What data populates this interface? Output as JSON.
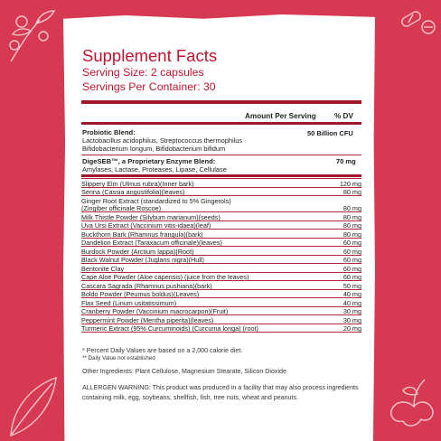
{
  "label": {
    "title": "Supplement Facts",
    "serving_size": "Serving Size: 2 capsules",
    "servings_per_container": "Servings Per Container: 30",
    "col_amount": "Amount Per Serving",
    "col_dv": "% DV",
    "probiotic": {
      "name": "Probiotic Blend:",
      "desc1": "Lactobacillus acidophilus, Streptococcus thermophilus",
      "desc2": "Bifidobacterium longum, Bifidobacterium bifidum",
      "amount": "50 Billion  CFU"
    },
    "enzyme": {
      "name": "DigeSEB™, a Proprietary Enzyme Blend:",
      "desc": "Amylases, Lactase, Proteases, Lipase, Cellulase",
      "amount": "70  mg"
    },
    "ingredients": [
      {
        "name": "Slippery Elm (Ulmus rubra)(Inner bark)",
        "amount": "120  mg"
      },
      {
        "name": "Senna (Cassia angustifolia)(leaves)",
        "amount": "80  mg"
      },
      {
        "name": "Ginger Root Extract (standardized to 5% Gingerols)",
        "name2": "(Zingiber officinale Roscoe)",
        "amount": "80  mg"
      },
      {
        "name": "Milk Thistle Powder (Silybum marianum)(seeds)",
        "amount": "80  mg"
      },
      {
        "name": "Uva Ursi Extract (Vaccinium vitis-idaea)(leaf)",
        "amount": "80  mg"
      },
      {
        "name": "Buckthorn Bark (Rhamnus frangula)(bark)",
        "amount": "80  mg"
      },
      {
        "name": "Dandelion Extract (Taraxacum officinale)(leaves)",
        "amount": "60  mg"
      },
      {
        "name": "Burdock Powder (Arctium lappa)(Root)",
        "amount": "60  mg"
      },
      {
        "name": "Black Walnut Powder (Juglans nigra)(Hull)",
        "amount": "60  mg"
      },
      {
        "name": "Bentonite Clay",
        "amount": "60  mg"
      },
      {
        "name": "Cape Aloe Powder (Aloe capensis) (juice from the leaves)",
        "amount": "60  mg"
      },
      {
        "name": "Cascara Sagrada (Rhamnus pushiana)(bark)",
        "amount": "50  mg"
      },
      {
        "name": "Boldo Powder (Peumus boldus)(Leaves)",
        "amount": "40  mg"
      },
      {
        "name": "Flax Seed (Linum usitatissimum)",
        "amount": "40  mg"
      },
      {
        "name": "Cranberry Powder (Vaccinium macrocarpon)(Fruit)",
        "amount": "30  mg"
      },
      {
        "name": "Peppermint Powder (Mentha piperita)(leaves)",
        "amount": "30  mg"
      },
      {
        "name": "Turmeric Extract (95% Curcuminoids) (Curcuma longa) (root)",
        "amount": "20  mg"
      }
    ],
    "footnote_dv": "* Percent Daily Values are based on a 2,000 calorie diet.",
    "footnote_na": "** Daily Value not established",
    "other_ingredients": "Other Ingredients: Plant Cellulose, Magnesium Stearate, Silicon Dioxide",
    "allergen_warning": "ALLERGEN WARNING: This product was produced in a facility that may also process ingredients containing milk, egg, soybeans, shellfish, fish, tree nuts, wheat and peanuts."
  },
  "colors": {
    "background": "#d63a52",
    "accent": "#c0142e",
    "rule": "#9e1a2b"
  },
  "icons": [
    "cranberry-branch-icon",
    "capsule-pills-icon",
    "ginger-root-icon",
    "leaf-outline-icon"
  ]
}
